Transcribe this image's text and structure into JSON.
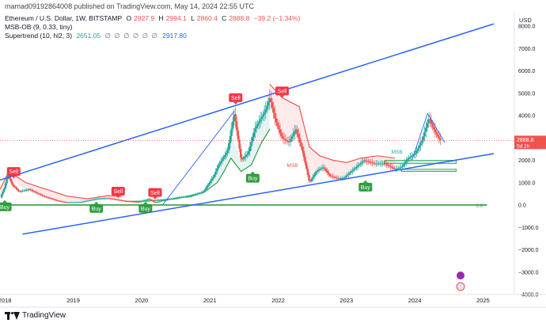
{
  "header": {
    "publish": "mamad09192864008 published on TradingView.com, May 14, 2024 22:55 UTC"
  },
  "legend": {
    "symbol": "Ethereum / U.S. Dollar, 1W, BITSTAMP",
    "o_label": "O",
    "o": "2927.9",
    "h_label": "H",
    "h": "2994.1",
    "l_label": "L",
    "l": "2860.4",
    "c_label": "C",
    "c": "2888.8",
    "change": "−39.2 (−1.34%)",
    "msb": "MSB-OB (9, 0.33, tiny)",
    "supertrend": "Supertrend (10, hl2, 3)",
    "st_val1": "2651.05",
    "eyes": "∅ ∅ ∅ ∅ ∅ ∅",
    "st_val2": "2917.80"
  },
  "footer": {
    "logo_text": "TradingView"
  },
  "colors": {
    "up": "#26a69a",
    "down": "#ef5350",
    "trend": "#2962ff",
    "buy": "#2e9e3f",
    "sell": "#f23645"
  },
  "chart_data": {
    "type": "candlestick",
    "y_axis": {
      "unit": "USD",
      "ylim": [
        -4000,
        8600
      ],
      "ticks": [
        8000,
        7000,
        6000,
        5000,
        4000,
        3000,
        2000,
        1000,
        0,
        -1000,
        -2000,
        -3000,
        -4000
      ],
      "tick_labels": [
        "8000.0",
        "7000.0",
        "6000.0",
        "5000.0",
        "4000.0",
        "3000.0",
        "2000.0",
        "1000.0",
        "0.0",
        "−1000.0",
        "−2000.0",
        "−3000.0",
        "−4000.0"
      ]
    },
    "x_axis": {
      "xlim": [
        2017.92,
        2025.45
      ],
      "ticks": [
        2018,
        2019,
        2020,
        2021,
        2022,
        2023,
        2024,
        2025
      ],
      "tick_labels": [
        "2018",
        "2019",
        "2020",
        "2021",
        "2022",
        "2023",
        "2024",
        "2025"
      ]
    },
    "price_path": [
      [
        2017.92,
        300
      ],
      [
        2017.99,
        800
      ],
      [
        2018.03,
        1380
      ],
      [
        2018.1,
        900
      ],
      [
        2018.2,
        600
      ],
      [
        2018.35,
        700
      ],
      [
        2018.55,
        400
      ],
      [
        2018.75,
        200
      ],
      [
        2018.9,
        110
      ],
      [
        2019.1,
        130
      ],
      [
        2019.35,
        280
      ],
      [
        2019.5,
        300
      ],
      [
        2019.75,
        180
      ],
      [
        2019.95,
        130
      ],
      [
        2020.1,
        270
      ],
      [
        2020.19,
        110
      ],
      [
        2020.3,
        200
      ],
      [
        2020.55,
        350
      ],
      [
        2020.7,
        380
      ],
      [
        2020.9,
        600
      ],
      [
        2021.05,
        1300
      ],
      [
        2021.12,
        1800
      ],
      [
        2021.25,
        2400
      ],
      [
        2021.35,
        4100
      ],
      [
        2021.45,
        2000
      ],
      [
        2021.55,
        2300
      ],
      [
        2021.65,
        3400
      ],
      [
        2021.8,
        4200
      ],
      [
        2021.87,
        4800
      ],
      [
        2021.95,
        3800
      ],
      [
        2022.05,
        3000
      ],
      [
        2022.15,
        2800
      ],
      [
        2022.25,
        3400
      ],
      [
        2022.35,
        2400
      ],
      [
        2022.45,
        1000
      ],
      [
        2022.55,
        1500
      ],
      [
        2022.65,
        1700
      ],
      [
        2022.75,
        1300
      ],
      [
        2022.85,
        1200
      ],
      [
        2022.95,
        1200
      ],
      [
        2023.1,
        1600
      ],
      [
        2023.25,
        2000
      ],
      [
        2023.4,
        1850
      ],
      [
        2023.55,
        1850
      ],
      [
        2023.7,
        1600
      ],
      [
        2023.8,
        1700
      ],
      [
        2023.9,
        2100
      ],
      [
        2024.0,
        2300
      ],
      [
        2024.1,
        2900
      ],
      [
        2024.2,
        3900
      ],
      [
        2024.25,
        3500
      ],
      [
        2024.32,
        3100
      ],
      [
        2024.37,
        2889
      ]
    ],
    "supertrend_bull": [
      [
        2019.75,
        150
      ],
      [
        2020.1,
        180
      ],
      [
        2020.5,
        280
      ],
      [
        2020.9,
        560
      ],
      [
        2021.1,
        1000
      ],
      [
        2021.2,
        1500
      ],
      [
        2021.3,
        2100
      ],
      [
        2021.45,
        1500
      ],
      [
        2021.6,
        1800
      ],
      [
        2021.75,
        2800
      ],
      [
        2021.87,
        3400
      ]
    ],
    "supertrend_bear": [
      [
        2017.92,
        700
      ],
      [
        2018.05,
        1500
      ],
      [
        2018.3,
        1000
      ],
      [
        2018.6,
        700
      ],
      [
        2018.9,
        400
      ],
      [
        2019.2,
        280
      ],
      [
        2019.5,
        420
      ],
      [
        2019.7,
        380
      ],
      [
        2021.87,
        5400
      ],
      [
        2022.05,
        4800
      ],
      [
        2022.3,
        4400
      ],
      [
        2022.45,
        2600
      ],
      [
        2022.6,
        2200
      ],
      [
        2022.8,
        2000
      ],
      [
        2023.0,
        1900
      ],
      [
        2023.2,
        2100
      ],
      [
        2023.45,
        2200
      ],
      [
        2023.7,
        2100
      ]
    ],
    "trendlines": [
      {
        "from": [
          2017.9,
          1100
        ],
        "to": [
          2025.15,
          8100
        ]
      },
      {
        "from": [
          2018.25,
          -1300
        ],
        "to": [
          2025.15,
          2300
        ]
      },
      {
        "from": [
          2024.18,
          4100
        ],
        "to": [
          2024.43,
          2800
        ]
      },
      {
        "from": [
          2020.3,
          0
        ],
        "to": [
          2021.35,
          4200
        ]
      },
      {
        "from": [
          2023.95,
          2000
        ],
        "to": [
          2024.18,
          4100
        ]
      }
    ],
    "hlines": [
      {
        "y": 0,
        "x_from": 2017.92,
        "x_to": 2025.05,
        "label": "0.0"
      }
    ],
    "zones": [
      {
        "x_from": 2023.55,
        "x_to": 2024.6,
        "y_from": 1850,
        "y_to": 2000
      },
      {
        "x_from": 2023.8,
        "x_to": 2024.6,
        "y_from": 1500,
        "y_to": 1600
      }
    ],
    "signals": [
      {
        "type": "sell",
        "x": 2018.12,
        "y": 1500,
        "label": "Sell"
      },
      {
        "type": "buy",
        "x": 2017.99,
        "y": -80,
        "label": "Buy"
      },
      {
        "type": "buy",
        "x": 2019.33,
        "y": -150,
        "label": "Buy"
      },
      {
        "type": "sell",
        "x": 2019.65,
        "y": 620,
        "label": "Sell"
      },
      {
        "type": "buy",
        "x": 2020.05,
        "y": -150,
        "label": "Buy"
      },
      {
        "type": "sell",
        "x": 2020.19,
        "y": 560,
        "label": "Sell"
      },
      {
        "type": "sell",
        "x": 2021.37,
        "y": 4800,
        "label": "Sell"
      },
      {
        "type": "buy",
        "x": 2021.62,
        "y": 1200,
        "label": "Buy"
      },
      {
        "type": "sell",
        "x": 2022.05,
        "y": 5100,
        "label": "Sell"
      },
      {
        "type": "buy",
        "x": 2023.27,
        "y": 800,
        "label": "Buy"
      }
    ],
    "annotations": [
      {
        "x": 2022.12,
        "y": 1700,
        "text": "MSB",
        "color": "#ef5350"
      },
      {
        "x": 2023.65,
        "y": 2300,
        "text": "MSB",
        "color": "#26a69a"
      }
    ],
    "last_price": {
      "value": 2888.8,
      "label": "2888.8",
      "countdown": "5d 2h"
    }
  }
}
